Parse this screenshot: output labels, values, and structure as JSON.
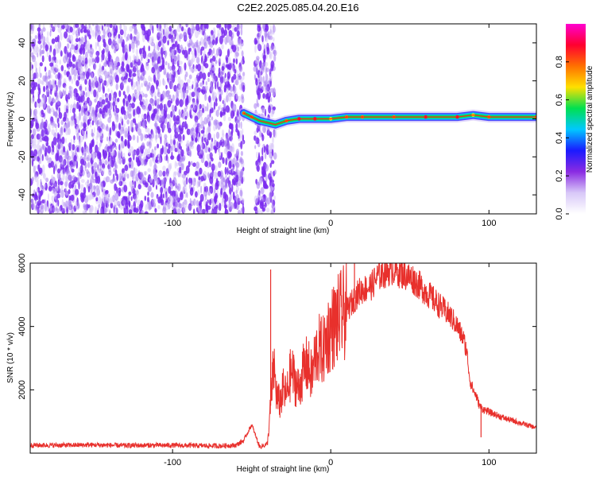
{
  "title": "C2E2.2025.085.04.20.E16",
  "colors": {
    "frame": "#000000",
    "snr_line": "#e8302c",
    "spectrogram_noise": "#7b2cf0",
    "colormap": [
      "#ffffff",
      "#d8c8f8",
      "#8a2be2",
      "#1a1aff",
      "#00c8ff",
      "#00e050",
      "#ffe000",
      "#ff7000",
      "#ff0030",
      "#ff00d0"
    ]
  },
  "chart_data": [
    {
      "type": "heatmap",
      "title": "C2E2.2025.085.04.20.E16",
      "xlabel": "Height of straight line (km)",
      "ylabel": "Frequency (Hz)",
      "xlim": [
        -190,
        130
      ],
      "ylim": [
        -50,
        50
      ],
      "x_ticks": [
        -100,
        0,
        100
      ],
      "y_ticks": [
        -40,
        -20,
        0,
        20,
        40
      ],
      "grid": false,
      "colorbar": {
        "label": "Normalized spectral amplitude",
        "range": [
          0,
          1
        ],
        "ticks": [
          0.0,
          0.2,
          0.4,
          0.6,
          0.8
        ]
      },
      "regions": [
        {
          "description": "broadband noise",
          "x_range": [
            -190,
            -55
          ],
          "y_range": [
            -50,
            50
          ],
          "amplitude": 0.2
        },
        {
          "description": "broadband noise",
          "x_range": [
            -48,
            -35
          ],
          "y_range": [
            -50,
            50
          ],
          "amplitude": 0.2
        }
      ],
      "ridge": [
        {
          "x": -55,
          "y": 3,
          "amplitude": 0.75
        },
        {
          "x": -50,
          "y": 1,
          "amplitude": 0.8
        },
        {
          "x": -45,
          "y": -1,
          "amplitude": 0.5
        },
        {
          "x": -35,
          "y": -3,
          "amplitude": 0.55
        },
        {
          "x": -28,
          "y": -1,
          "amplitude": 0.8
        },
        {
          "x": -20,
          "y": 0,
          "amplitude": 0.9
        },
        {
          "x": -10,
          "y": 0,
          "amplitude": 0.85
        },
        {
          "x": 0,
          "y": 0,
          "amplitude": 0.7
        },
        {
          "x": 10,
          "y": 1,
          "amplitude": 0.8
        },
        {
          "x": 20,
          "y": 1,
          "amplitude": 0.75
        },
        {
          "x": 40,
          "y": 1,
          "amplitude": 0.8
        },
        {
          "x": 60,
          "y": 1,
          "amplitude": 0.85
        },
        {
          "x": 80,
          "y": 1,
          "amplitude": 0.85
        },
        {
          "x": 90,
          "y": 2,
          "amplitude": 0.7
        },
        {
          "x": 100,
          "y": 1,
          "amplitude": 0.8
        },
        {
          "x": 130,
          "y": 1,
          "amplitude": 0.8
        }
      ]
    },
    {
      "type": "line",
      "xlabel": "Height of straight line (km)",
      "ylabel": "SNR (10 * v/v)",
      "xlim": [
        -190,
        130
      ],
      "ylim": [
        0,
        6000
      ],
      "x_ticks": [
        -100,
        0,
        100
      ],
      "y_ticks": [
        2000,
        4000,
        6000
      ],
      "grid": false,
      "series": [
        {
          "x": [
            -190,
            -170,
            -150,
            -130,
            -110,
            -90,
            -70,
            -60,
            -55,
            -50,
            -45,
            -42,
            -40,
            -38,
            -36,
            -34,
            -32,
            -30,
            -28,
            -25,
            -22,
            -20,
            -18,
            -15,
            -12,
            -10,
            -8,
            -5,
            -2,
            0,
            3,
            6,
            10,
            14,
            18,
            22,
            26,
            30,
            34,
            38,
            40,
            44,
            48,
            52,
            56,
            60,
            64,
            68,
            72,
            76,
            80,
            84,
            86,
            88,
            90,
            92,
            94,
            96,
            100,
            110,
            120,
            130
          ],
          "y": [
            250,
            250,
            260,
            240,
            250,
            240,
            230,
            250,
            400,
            900,
            200,
            250,
            300,
            1500,
            2800,
            1700,
            1600,
            2000,
            1800,
            2600,
            2200,
            2000,
            2500,
            2800,
            2400,
            3000,
            3300,
            3200,
            3700,
            3900,
            4100,
            4300,
            4500,
            4800,
            5100,
            5200,
            5300,
            5600,
            5700,
            5800,
            5800,
            5700,
            5600,
            5500,
            5300,
            5100,
            4900,
            4700,
            4500,
            4300,
            4000,
            3600,
            3200,
            2300,
            2000,
            1800,
            1500,
            1400,
            1300,
            1100,
            950,
            800
          ]
        }
      ],
      "annotations": [
        {
          "x": -38,
          "y": 5800,
          "note": "spike"
        },
        {
          "x": 15,
          "y": 6000,
          "note": "spike"
        },
        {
          "x": 95,
          "y": 500,
          "note": "dip"
        }
      ]
    }
  ]
}
